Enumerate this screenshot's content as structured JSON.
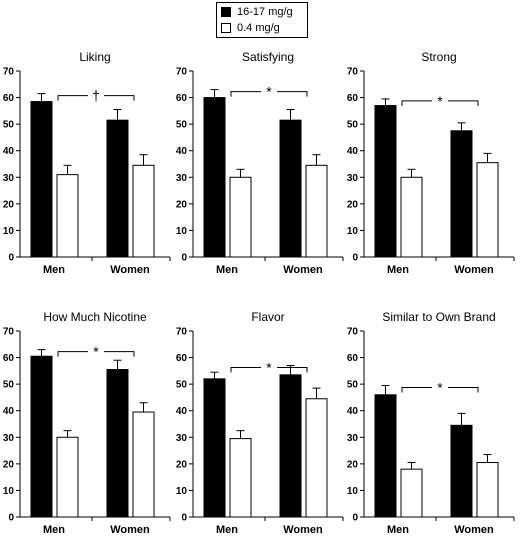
{
  "legend": [
    {
      "label": "16-17 mg/g",
      "color": "#000000"
    },
    {
      "label": "0.4 mg/g",
      "color": "#ffffff"
    }
  ],
  "chart_data": [
    {
      "type": "bar",
      "title": "Liking",
      "categories": [
        "Men",
        "Women"
      ],
      "ylim": [
        0,
        70
      ],
      "yticks": [
        0,
        10,
        20,
        30,
        40,
        50,
        60,
        70
      ],
      "series": [
        {
          "name": "16-17 mg/g",
          "values": [
            58.5,
            51.5
          ],
          "errors": [
            3,
            4
          ]
        },
        {
          "name": "0.4 mg/g",
          "values": [
            31,
            34.5
          ],
          "errors": [
            3.5,
            4
          ]
        }
      ],
      "annotation": "†"
    },
    {
      "type": "bar",
      "title": "Satisfying",
      "categories": [
        "Men",
        "Women"
      ],
      "ylim": [
        0,
        70
      ],
      "yticks": [
        0,
        10,
        20,
        30,
        40,
        50,
        60,
        70
      ],
      "series": [
        {
          "name": "16-17 mg/g",
          "values": [
            60,
            51.5
          ],
          "errors": [
            3,
            4
          ]
        },
        {
          "name": "0.4 mg/g",
          "values": [
            30,
            34.5
          ],
          "errors": [
            3,
            4
          ]
        }
      ],
      "annotation": "*"
    },
    {
      "type": "bar",
      "title": "Strong",
      "categories": [
        "Men",
        "Women"
      ],
      "ylim": [
        0,
        70
      ],
      "yticks": [
        0,
        10,
        20,
        30,
        40,
        50,
        60,
        70
      ],
      "series": [
        {
          "name": "16-17 mg/g",
          "values": [
            57,
            47.5
          ],
          "errors": [
            2.5,
            3
          ]
        },
        {
          "name": "0.4 mg/g",
          "values": [
            30,
            35.5
          ],
          "errors": [
            3,
            3.5
          ]
        }
      ],
      "annotation": "*"
    },
    {
      "type": "bar",
      "title": "How Much Nicotine",
      "categories": [
        "Men",
        "Women"
      ],
      "ylim": [
        0,
        70
      ],
      "yticks": [
        0,
        10,
        20,
        30,
        40,
        50,
        60,
        70
      ],
      "series": [
        {
          "name": "16-17 mg/g",
          "values": [
            60.5,
            55.5
          ],
          "errors": [
            2.5,
            3.5
          ]
        },
        {
          "name": "0.4 mg/g",
          "values": [
            30,
            39.5
          ],
          "errors": [
            2.5,
            3.5
          ]
        }
      ],
      "annotation": "*"
    },
    {
      "type": "bar",
      "title": "Flavor",
      "categories": [
        "Men",
        "Women"
      ],
      "ylim": [
        0,
        70
      ],
      "yticks": [
        0,
        10,
        20,
        30,
        40,
        50,
        60,
        70
      ],
      "series": [
        {
          "name": "16-17 mg/g",
          "values": [
            52,
            53.5
          ],
          "errors": [
            2.5,
            3.5
          ]
        },
        {
          "name": "0.4 mg/g",
          "values": [
            29.5,
            44.5
          ],
          "errors": [
            3,
            4
          ]
        }
      ],
      "annotation": "*"
    },
    {
      "type": "bar",
      "title": "Similar to Own Brand",
      "categories": [
        "Men",
        "Women"
      ],
      "ylim": [
        0,
        70
      ],
      "yticks": [
        0,
        10,
        20,
        30,
        40,
        50,
        60,
        70
      ],
      "series": [
        {
          "name": "16-17 mg/g",
          "values": [
            46,
            34.5
          ],
          "errors": [
            3.5,
            4.5
          ]
        },
        {
          "name": "0.4 mg/g",
          "values": [
            18,
            20.5
          ],
          "errors": [
            2.5,
            3
          ]
        }
      ],
      "annotation": "*"
    }
  ]
}
